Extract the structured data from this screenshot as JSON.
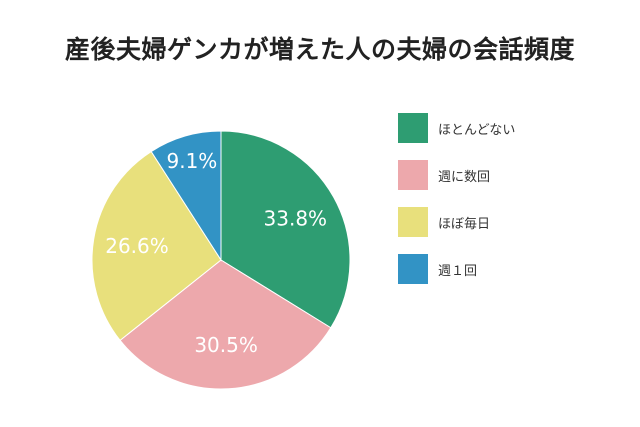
{
  "title": "産後夫婦ゲンカが増えた人の夫婦の会話頻度",
  "chart_data": {
    "type": "pie",
    "title": "産後夫婦ゲンカが増えた人の夫婦の会話頻度",
    "legend_position": "right",
    "slices": [
      {
        "label": "ほとんどない",
        "value": 33.8,
        "value_label": "33.8%",
        "color": "#2e9d72"
      },
      {
        "label": "週に数回",
        "value": 30.5,
        "value_label": "30.5%",
        "color": "#eda8ac"
      },
      {
        "label": "ほぼ毎日",
        "value": 26.6,
        "value_label": "26.6%",
        "color": "#e8e07c"
      },
      {
        "label": "週１回",
        "value": 9.1,
        "value_label": "9.1%",
        "color": "#3293c5"
      }
    ]
  }
}
